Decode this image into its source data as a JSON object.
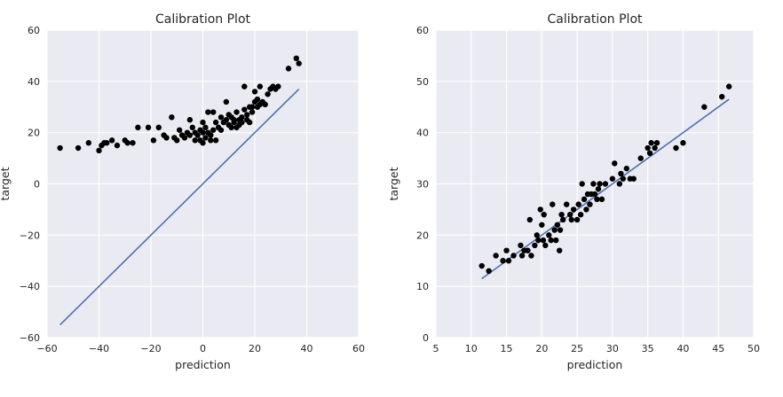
{
  "chart_data": [
    {
      "type": "scatter",
      "title": "Calibration Plot",
      "xlabel": "prediction",
      "ylabel": "target",
      "xlim": [
        -60,
        60
      ],
      "ylim": [
        -60,
        60
      ],
      "xticks": [
        -60,
        -40,
        -20,
        0,
        20,
        40,
        60
      ],
      "yticks": [
        -60,
        -40,
        -20,
        0,
        20,
        40,
        60
      ],
      "grid": true,
      "background": "#eaeaf2",
      "point_color": "#000000",
      "line_color": "#4c72b0",
      "line": {
        "x": [
          -55,
          37
        ],
        "y": [
          -55,
          37
        ]
      },
      "points": [
        [
          -55,
          14
        ],
        [
          -48,
          14
        ],
        [
          -44,
          16
        ],
        [
          -40,
          13
        ],
        [
          -39,
          15
        ],
        [
          -38,
          16
        ],
        [
          -37,
          16
        ],
        [
          -35,
          17
        ],
        [
          -33,
          15
        ],
        [
          -30,
          17
        ],
        [
          -29,
          16
        ],
        [
          -27,
          16
        ],
        [
          -25,
          22
        ],
        [
          -21,
          22
        ],
        [
          -19,
          17
        ],
        [
          -17,
          22
        ],
        [
          -15,
          19
        ],
        [
          -14,
          18
        ],
        [
          -12,
          26
        ],
        [
          -11,
          18
        ],
        [
          -10,
          17
        ],
        [
          -9,
          21
        ],
        [
          -8,
          19
        ],
        [
          -7,
          18
        ],
        [
          -6,
          20
        ],
        [
          -5,
          19
        ],
        [
          -5,
          25
        ],
        [
          -4,
          22
        ],
        [
          -3,
          20
        ],
        [
          -3,
          17
        ],
        [
          -2,
          19
        ],
        [
          -1,
          21
        ],
        [
          -1,
          17
        ],
        [
          0,
          20
        ],
        [
          0,
          24
        ],
        [
          0,
          16
        ],
        [
          1,
          22
        ],
        [
          1,
          18
        ],
        [
          2,
          28
        ],
        [
          2,
          20
        ],
        [
          3,
          19
        ],
        [
          3,
          17
        ],
        [
          4,
          28
        ],
        [
          4,
          21
        ],
        [
          5,
          24
        ],
        [
          5,
          17
        ],
        [
          6,
          22
        ],
        [
          7,
          26
        ],
        [
          7,
          21
        ],
        [
          8,
          24
        ],
        [
          9,
          25
        ],
        [
          9,
          32
        ],
        [
          10,
          27
        ],
        [
          10,
          23
        ],
        [
          11,
          26
        ],
        [
          11,
          22
        ],
        [
          12,
          25
        ],
        [
          12,
          24
        ],
        [
          13,
          28
        ],
        [
          13,
          22
        ],
        [
          14,
          25
        ],
        [
          14,
          23
        ],
        [
          15,
          26
        ],
        [
          15,
          24
        ],
        [
          16,
          29
        ],
        [
          16,
          38
        ],
        [
          17,
          27
        ],
        [
          17,
          25
        ],
        [
          18,
          30
        ],
        [
          18,
          24
        ],
        [
          19,
          30
        ],
        [
          19,
          28
        ],
        [
          20,
          36
        ],
        [
          20,
          32
        ],
        [
          21,
          30
        ],
        [
          21,
          33
        ],
        [
          22,
          31
        ],
        [
          22,
          38
        ],
        [
          23,
          32
        ],
        [
          24,
          31
        ],
        [
          25,
          35
        ],
        [
          26,
          37
        ],
        [
          27,
          38
        ],
        [
          28,
          37
        ],
        [
          29,
          38
        ],
        [
          33,
          45
        ],
        [
          36,
          49
        ],
        [
          37,
          47
        ]
      ]
    },
    {
      "type": "scatter",
      "title": "Calibration Plot",
      "xlabel": "prediction",
      "ylabel": "target",
      "xlim": [
        5,
        50
      ],
      "ylim": [
        0,
        60
      ],
      "xticks": [
        5,
        10,
        15,
        20,
        25,
        30,
        35,
        40,
        45,
        50
      ],
      "yticks": [
        0,
        10,
        20,
        30,
        40,
        50,
        60
      ],
      "grid": true,
      "background": "#eaeaf2",
      "point_color": "#000000",
      "line_color": "#4c72b0",
      "line": {
        "x": [
          11.5,
          46.5
        ],
        "y": [
          11.5,
          46.5
        ]
      },
      "points": [
        [
          11.5,
          14
        ],
        [
          12.5,
          13
        ],
        [
          13.5,
          16
        ],
        [
          14.5,
          15
        ],
        [
          15,
          17
        ],
        [
          15.3,
          15
        ],
        [
          16,
          16
        ],
        [
          17,
          18
        ],
        [
          17.2,
          16
        ],
        [
          17.5,
          17
        ],
        [
          18,
          17
        ],
        [
          18.3,
          23
        ],
        [
          18.5,
          16
        ],
        [
          19,
          18
        ],
        [
          19.3,
          20
        ],
        [
          19.5,
          19
        ],
        [
          19.8,
          25
        ],
        [
          20,
          22
        ],
        [
          20.2,
          19
        ],
        [
          20.3,
          24
        ],
        [
          20.5,
          18
        ],
        [
          21,
          20
        ],
        [
          21.3,
          19
        ],
        [
          21.5,
          26
        ],
        [
          21.8,
          21
        ],
        [
          22,
          19
        ],
        [
          22.2,
          22
        ],
        [
          22.5,
          17
        ],
        [
          22.6,
          21
        ],
        [
          22.8,
          24
        ],
        [
          23,
          23
        ],
        [
          23.5,
          26
        ],
        [
          24,
          24
        ],
        [
          24.2,
          23
        ],
        [
          24.5,
          25
        ],
        [
          25,
          23
        ],
        [
          25.2,
          26
        ],
        [
          25.5,
          24
        ],
        [
          25.7,
          30
        ],
        [
          26,
          27
        ],
        [
          26.3,
          25
        ],
        [
          26.5,
          28
        ],
        [
          26.8,
          26
        ],
        [
          27,
          28
        ],
        [
          27.3,
          30
        ],
        [
          27.5,
          28
        ],
        [
          27.8,
          27
        ],
        [
          28,
          29
        ],
        [
          28.2,
          30
        ],
        [
          28.5,
          27
        ],
        [
          29,
          30
        ],
        [
          30,
          31
        ],
        [
          30.3,
          34
        ],
        [
          31,
          30
        ],
        [
          31.2,
          32
        ],
        [
          31.5,
          31
        ],
        [
          32,
          33
        ],
        [
          32.5,
          31
        ],
        [
          33,
          31
        ],
        [
          34,
          35
        ],
        [
          35,
          37
        ],
        [
          35.3,
          36
        ],
        [
          35.5,
          38
        ],
        [
          36,
          37
        ],
        [
          36.3,
          38
        ],
        [
          39,
          37
        ],
        [
          40,
          38
        ],
        [
          43,
          45
        ],
        [
          45.5,
          47
        ],
        [
          46.5,
          49
        ]
      ]
    }
  ]
}
